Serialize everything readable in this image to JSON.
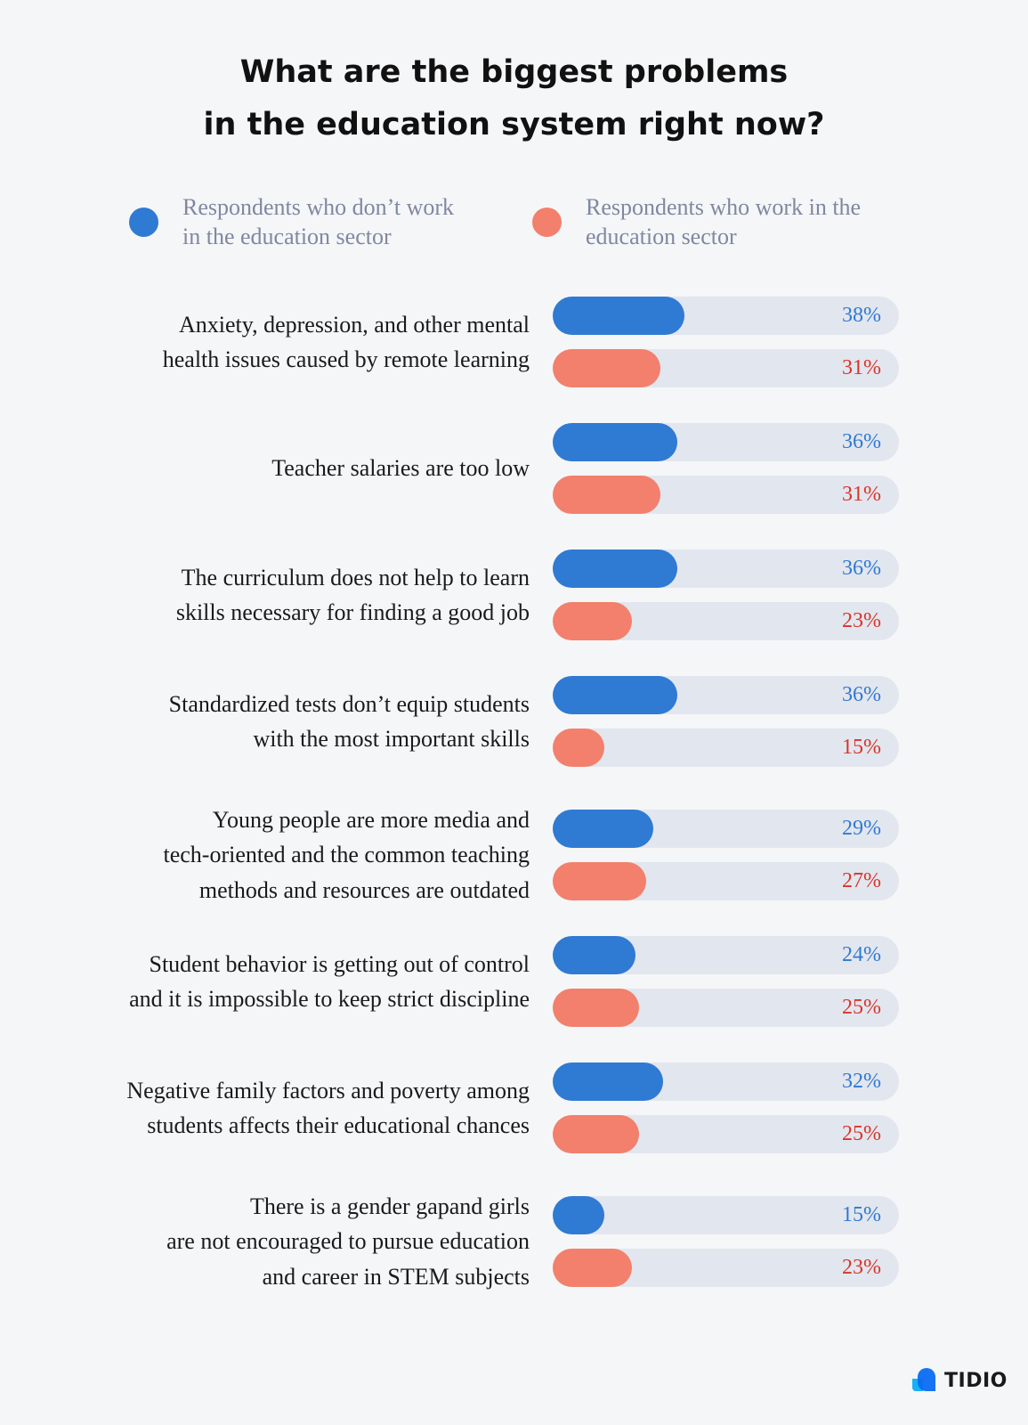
{
  "title": {
    "line1": "What are the biggest problems",
    "line2": "in the education system right now?"
  },
  "colors": {
    "series1": "#2f7ad3",
    "series2": "#f2806c",
    "series1_text": "#2f7ad3",
    "series2_text": "#d9352a",
    "track": "#e2e6ee"
  },
  "brand": {
    "name": "TIDIO",
    "icon": "tidio-logo-icon"
  },
  "chart_data": {
    "type": "bar",
    "orientation": "horizontal",
    "title": "What are the biggest problems in the education system right now?",
    "xlim": [
      0,
      100
    ],
    "value_suffix": "%",
    "legend_position": "top",
    "categories": [
      "Anxiety, depression, and other mental\nhealth issues caused by remote learning",
      "Teacher salaries are too low",
      "The curriculum does not help to learn\nskills necessary for finding a good job",
      "Standardized tests don’t equip students\nwith the most important skills",
      "Young people are more media and\ntech-oriented and the common teaching\nmethods and resources are outdated",
      "Student behavior is getting out of control\nand it is impossible to keep strict discipline",
      "Negative family factors and poverty among\nstudents affects their educational chances",
      "There is a gender gapand girls\nare not encouraged to pursue education\nand career in STEM subjects"
    ],
    "series": [
      {
        "name": "Respondents who don’t work\nin the education sector",
        "values": [
          38,
          36,
          36,
          36,
          29,
          24,
          32,
          15
        ]
      },
      {
        "name": "Respondents who work in the\neducation sector",
        "values": [
          31,
          31,
          23,
          15,
          27,
          25,
          25,
          23
        ]
      }
    ]
  }
}
